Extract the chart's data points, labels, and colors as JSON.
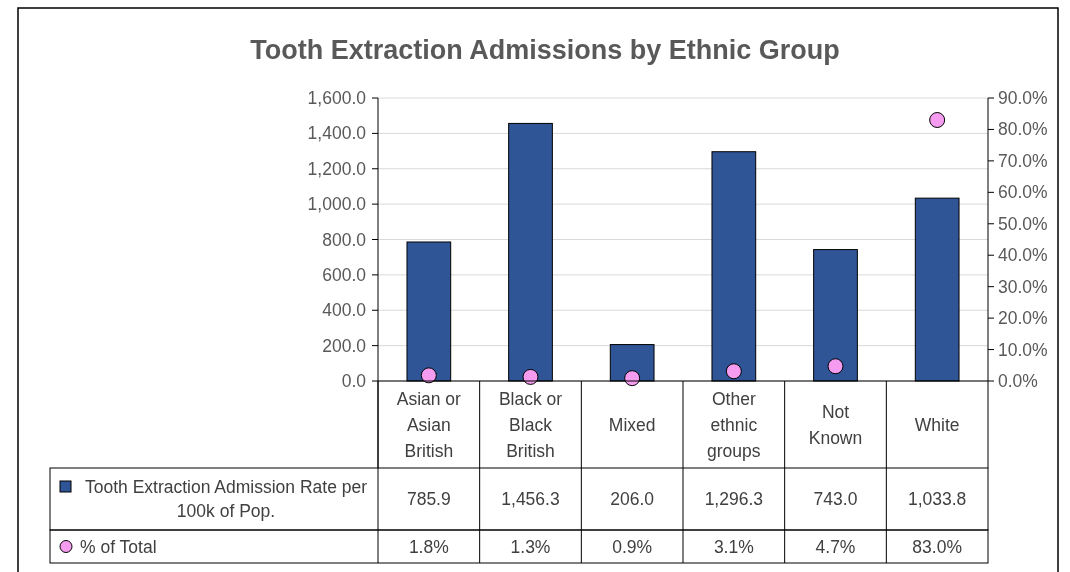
{
  "chart_data": {
    "type": "bar",
    "title": "Tooth Extraction Admissions by Ethnic Group",
    "categories": [
      "Asian or Asian British",
      "Black or Black British",
      "Mixed",
      "Other ethnic groups",
      "Not Known",
      "White"
    ],
    "series": [
      {
        "name": "Tooth Extraction Admission Rate per 100k of Pop.",
        "color": "#2f5597",
        "values": [
          785.9,
          1456.3,
          206.0,
          1296.3,
          743.0,
          1033.8
        ],
        "value_labels": [
          "785.9",
          "1,456.3",
          "206.0",
          "1,296.3",
          "743.0",
          "1,033.8"
        ]
      },
      {
        "name": "% of Total",
        "type": "scatter",
        "axis": "y2",
        "marker": "circle",
        "color": "#f59cf0",
        "values": [
          1.8,
          1.3,
          0.9,
          3.1,
          4.7,
          83.0
        ],
        "value_labels": [
          "1.8%",
          "1.3%",
          "0.9%",
          "3.1%",
          "4.7%",
          "83.0%"
        ]
      }
    ],
    "ylim": [
      0,
      1600
    ],
    "yticks": [
      {
        "value": 0,
        "label": "0.0"
      },
      {
        "value": 200,
        "label": "200.0"
      },
      {
        "value": 400,
        "label": "400.0"
      },
      {
        "value": 600,
        "label": "600.0"
      },
      {
        "value": 800,
        "label": "800.0"
      },
      {
        "value": 1000,
        "label": "1,000.0"
      },
      {
        "value": 1200,
        "label": "1,200.0"
      },
      {
        "value": 1400,
        "label": "1,400.0"
      },
      {
        "value": 1600,
        "label": "1,600.0"
      }
    ],
    "y2lim": [
      0,
      90
    ],
    "y2ticks": [
      {
        "value": 0,
        "label": "0.0%"
      },
      {
        "value": 10,
        "label": "10.0%"
      },
      {
        "value": 20,
        "label": "20.0%"
      },
      {
        "value": 30,
        "label": "30.0%"
      },
      {
        "value": 40,
        "label": "40.0%"
      },
      {
        "value": 50,
        "label": "50.0%"
      },
      {
        "value": 60,
        "label": "60.0%"
      },
      {
        "value": 70,
        "label": "70.0%"
      },
      {
        "value": 80,
        "label": "80.0%"
      },
      {
        "value": 90,
        "label": "90.0%"
      }
    ],
    "grid": "y",
    "legend": "bottom"
  }
}
